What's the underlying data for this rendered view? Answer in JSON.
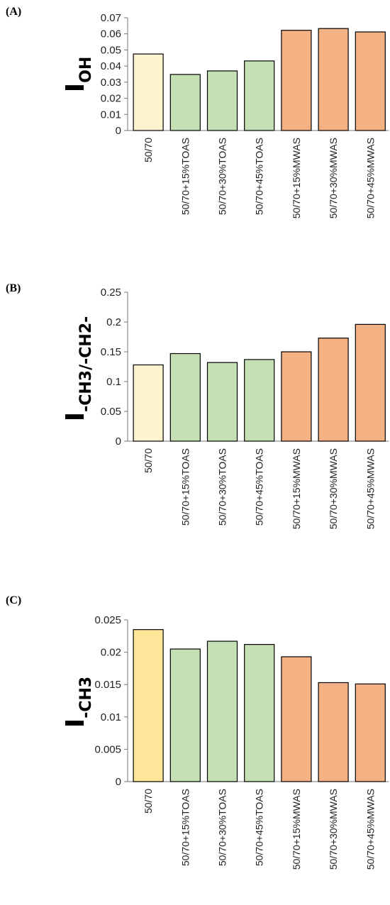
{
  "chart_data": [
    {
      "type": "bar",
      "panel_label": "(A)",
      "ylabel_main": "I",
      "ylabel_sub": "OH",
      "categories": [
        "50/70",
        "50/70+15%TOAS",
        "50/70+30%TOAS",
        "50/70+45%TOAS",
        "50/70+15%MWAS",
        "50/70+30%MWAS",
        "50/70+45%MWAS"
      ],
      "values": [
        0.0475,
        0.0348,
        0.037,
        0.0432,
        0.0622,
        0.0633,
        0.0612
      ],
      "colors": [
        "#FEF3CF",
        "#C5E0B4",
        "#C5E0B4",
        "#C5E0B4",
        "#F4B183",
        "#F4B183",
        "#F4B183"
      ],
      "ylim": [
        0,
        0.07
      ],
      "yticks": [
        "0",
        "0.01",
        "0.02",
        "0.03",
        "0.04",
        "0.05",
        "0.06",
        "0.07"
      ],
      "grid": false
    },
    {
      "type": "bar",
      "panel_label": "(B)",
      "ylabel_main": "I",
      "ylabel_sub": "-CH3/-CH2-",
      "categories": [
        "50/70",
        "50/70+15%TOAS",
        "50/70+30%TOAS",
        "50/70+45%TOAS",
        "50/70+15%MWAS",
        "50/70+30%MWAS",
        "50/70+45%MWAS"
      ],
      "values": [
        0.128,
        0.147,
        0.132,
        0.137,
        0.15,
        0.173,
        0.196
      ],
      "colors": [
        "#FEF3CF",
        "#C5E0B4",
        "#C5E0B4",
        "#C5E0B4",
        "#F4B183",
        "#F4B183",
        "#F4B183"
      ],
      "ylim": [
        0,
        0.25
      ],
      "yticks": [
        "0",
        "0.05",
        "0.1",
        "0.15",
        "0.2",
        "0.25"
      ],
      "grid": false
    },
    {
      "type": "bar",
      "panel_label": "(C)",
      "ylabel_main": "I",
      "ylabel_sub": "-CH3",
      "categories": [
        "50/70",
        "50/70+15%TOAS",
        "50/70+30%TOAS",
        "50/70+45%TOAS",
        "50/70+15%MWAS",
        "50/70+30%MWAS",
        "50/70+45%MWAS"
      ],
      "values": [
        0.0235,
        0.0205,
        0.0217,
        0.0212,
        0.0193,
        0.0153,
        0.0151
      ],
      "colors": [
        "#FFE699",
        "#C5E0B4",
        "#C5E0B4",
        "#C5E0B4",
        "#F4B183",
        "#F4B183",
        "#F4B183"
      ],
      "ylim": [
        0,
        0.025
      ],
      "yticks": [
        "0",
        "0.005",
        "0.01",
        "0.015",
        "0.02",
        "0.025"
      ],
      "grid": false
    }
  ]
}
